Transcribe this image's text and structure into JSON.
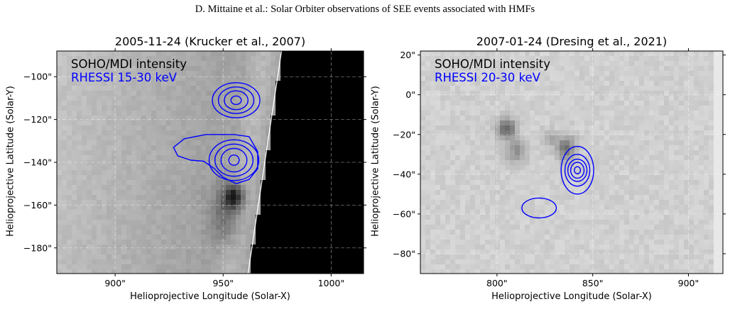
{
  "header": {
    "running_title": "D. Mittaine et al.: Solar Orbiter observations of SEE events associated with HMFs"
  },
  "chart_data": [
    {
      "type": "heatmap",
      "title": "2005-11-24 (Krucker et al., 2007)",
      "xlabel": "Helioprojective Longitude (Solar-X)",
      "ylabel": "Helioprojective Latitude (Solar-Y)",
      "xlim": [
        873,
        1015
      ],
      "ylim": [
        -192,
        -88
      ],
      "x_ticks": [
        900,
        950,
        1000
      ],
      "x_tick_labels": [
        "900\"",
        "950\"",
        "1000\""
      ],
      "y_ticks": [
        -100,
        -120,
        -140,
        -160,
        -180
      ],
      "y_tick_labels": [
        "−100\"",
        "−120\"",
        "−140\"",
        "−160\"",
        "−180\""
      ],
      "grid": true,
      "legend": [
        "SOHO/MDI intensity",
        "RHESSI 15-30 keV"
      ],
      "legend_colors": [
        "#000000",
        "#0000ff"
      ],
      "contour_color": "#0000ff",
      "limb_color": "#ffffff",
      "contour_sources": [
        {
          "center": [
            956,
            -111
          ],
          "levels": [
            [
              2.4,
              2
            ],
            [
              5.5,
              4.4
            ],
            [
              8.2,
              6.2
            ],
            [
              11,
              8.2
            ]
          ]
        },
        {
          "center": [
            955,
            -139
          ],
          "levels": [
            [
              2.4,
              2.4
            ],
            [
              6,
              5.5
            ],
            [
              8.8,
              7.5
            ],
            [
              11.5,
              9.5
            ]
          ]
        }
      ],
      "extra_contour": [
        [
          955,
          -127
        ],
        [
          942,
          -127
        ],
        [
          932,
          -129
        ],
        [
          927,
          -133
        ],
        [
          929,
          -137
        ],
        [
          935,
          -139
        ],
        [
          941,
          -139.5
        ],
        [
          946,
          -143
        ],
        [
          950,
          -147
        ],
        [
          956,
          -150
        ],
        [
          962,
          -148
        ],
        [
          966,
          -143
        ],
        [
          966,
          -135
        ],
        [
          962,
          -128
        ],
        [
          955,
          -127
        ]
      ]
    },
    {
      "type": "heatmap",
      "title": "2007-01-24 (Dresing et al., 2021)",
      "xlabel": "Helioprojective Longitude (Solar-X)",
      "ylabel": "Helioprojective Latitude (Solar-Y)",
      "xlim": [
        760,
        918
      ],
      "ylim": [
        -90,
        22
      ],
      "x_ticks": [
        800,
        850,
        900
      ],
      "x_tick_labels": [
        "800\"",
        "850\"",
        "900\""
      ],
      "y_ticks": [
        20,
        0,
        -20,
        -40,
        -60,
        -80
      ],
      "y_tick_labels": [
        "20\"",
        "0\"",
        "−20\"",
        "−40\"",
        "−60\"",
        "−80\""
      ],
      "grid": true,
      "legend": [
        "SOHO/MDI intensity",
        "RHESSI 20-30 keV"
      ],
      "legend_colors": [
        "#000000",
        "#0000ff"
      ],
      "contour_color": "#0000ff",
      "contour_sources": [
        {
          "center": [
            842,
            -38
          ],
          "levels": [
            [
              1.6,
              1.8
            ],
            [
              3.5,
              4
            ],
            [
              5,
              5.6
            ],
            [
              6.5,
              8
            ],
            [
              8.5,
              12
            ]
          ]
        },
        {
          "center": [
            822,
            -57
          ],
          "levels": [
            [
              9,
              5
            ]
          ]
        }
      ]
    }
  ]
}
